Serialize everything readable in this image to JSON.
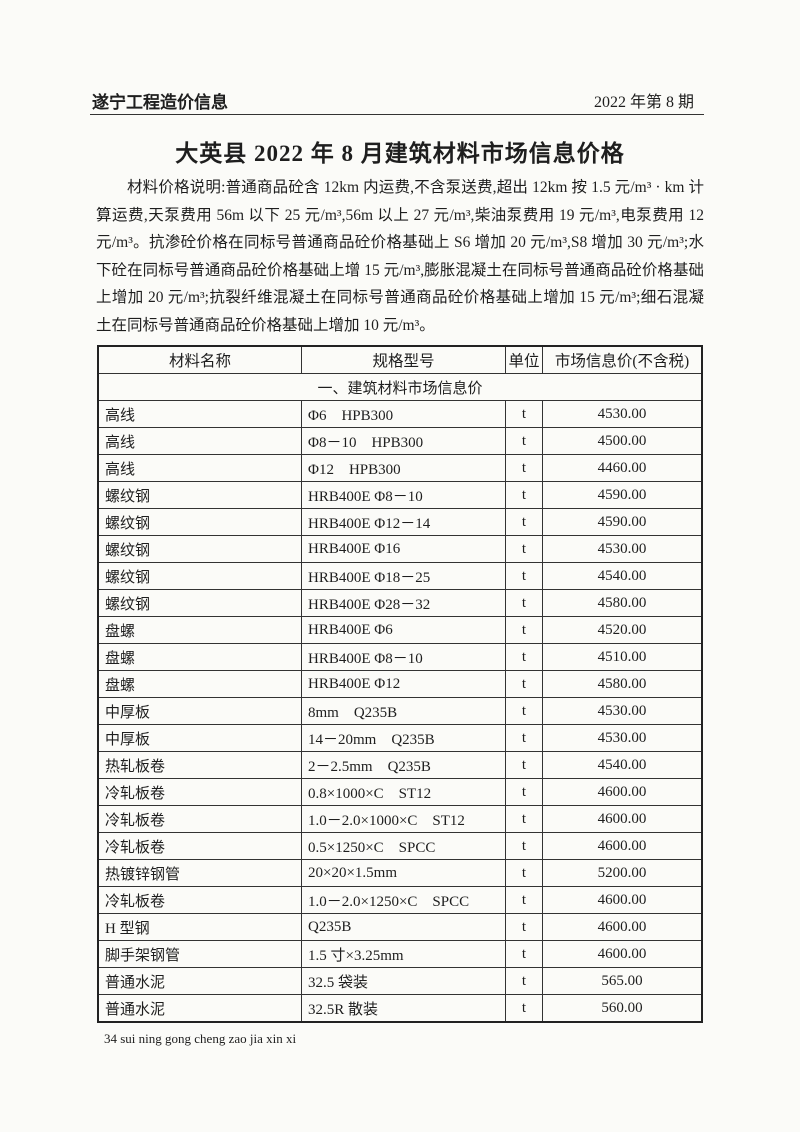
{
  "header": {
    "publication": "遂宁工程造价信息",
    "issue": "2022 年第 8 期"
  },
  "title": "大英县 2022 年 8 月建筑材料市场信息价格",
  "description": "材料价格说明:普通商品砼含 12km 内运费,不含泵送费,超出 12km 按 1.5 元/m³ · km 计算运费,天泵费用 56m 以下 25 元/m³,56m 以上 27 元/m³,柴油泵费用 19 元/m³,电泵费用 12 元/m³。抗渗砼价格在同标号普通商品砼价格基础上 S6 增加 20 元/m³,S8 增加 30 元/m³;水下砼在同标号普通商品砼价格基础上增 15 元/m³,膨胀混凝土在同标号普通商品砼价格基础上增加 20 元/m³;抗裂纤维混凝土在同标号普通商品砼价格基础上增加 15 元/m³;细石混凝土在同标号普通商品砼价格基础上增加 10 元/m³。",
  "table": {
    "columns": [
      "材料名称",
      "规格型号",
      "单位",
      "市场信息价(不含税)"
    ],
    "section": "一、建筑材料市场信息价",
    "rows": [
      [
        "高线",
        "Φ6　HPB300",
        "t",
        "4530.00"
      ],
      [
        "高线",
        "Φ8－10　HPB300",
        "t",
        "4500.00"
      ],
      [
        "高线",
        "Φ12　HPB300",
        "t",
        "4460.00"
      ],
      [
        "螺纹钢",
        "HRB400E Φ8－10",
        "t",
        "4590.00"
      ],
      [
        "螺纹钢",
        "HRB400E Φ12－14",
        "t",
        "4590.00"
      ],
      [
        "螺纹钢",
        "HRB400E Φ16",
        "t",
        "4530.00"
      ],
      [
        "螺纹钢",
        "HRB400E Φ18－25",
        "t",
        "4540.00"
      ],
      [
        "螺纹钢",
        "HRB400E Φ28－32",
        "t",
        "4580.00"
      ],
      [
        "盘螺",
        "HRB400E Φ6",
        "t",
        "4520.00"
      ],
      [
        "盘螺",
        "HRB400E Φ8－10",
        "t",
        "4510.00"
      ],
      [
        "盘螺",
        "HRB400E Φ12",
        "t",
        "4580.00"
      ],
      [
        "中厚板",
        "8mm　Q235B",
        "t",
        "4530.00"
      ],
      [
        "中厚板",
        "14－20mm　Q235B",
        "t",
        "4530.00"
      ],
      [
        "热轧板卷",
        "2－2.5mm　Q235B",
        "t",
        "4540.00"
      ],
      [
        "冷轧板卷",
        "0.8×1000×C　ST12",
        "t",
        "4600.00"
      ],
      [
        "冷轧板卷",
        "1.0－2.0×1000×C　ST12",
        "t",
        "4600.00"
      ],
      [
        "冷轧板卷",
        "0.5×1250×C　SPCC",
        "t",
        "4600.00"
      ],
      [
        "热镀锌钢管",
        "20×20×1.5mm",
        "t",
        "5200.00"
      ],
      [
        "冷轧板卷",
        "1.0－2.0×1250×C　SPCC",
        "t",
        "4600.00"
      ],
      [
        "H 型钢",
        "Q235B",
        "t",
        "4600.00"
      ],
      [
        "脚手架钢管",
        "1.5 寸×3.25mm",
        "t",
        "4600.00"
      ],
      [
        "普通水泥",
        "32.5 袋装",
        "t",
        "565.00"
      ],
      [
        "普通水泥",
        "32.5R 散装",
        "t",
        "560.00"
      ]
    ]
  },
  "footer": "34 sui ning gong cheng zao jia xin xi"
}
